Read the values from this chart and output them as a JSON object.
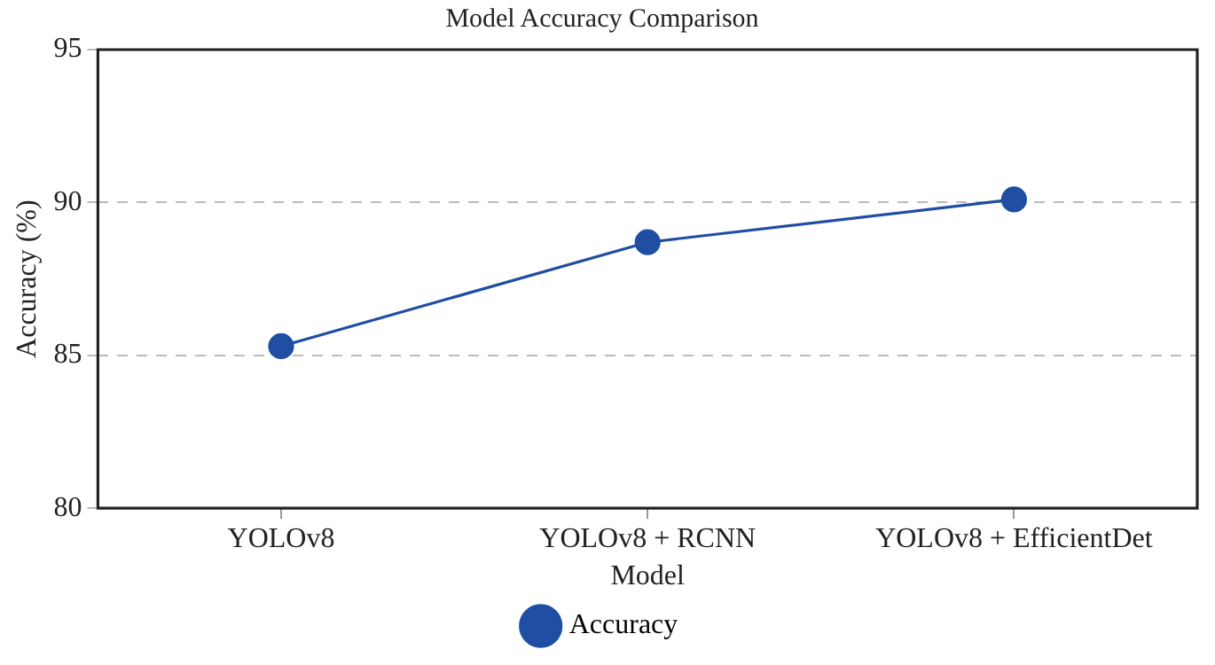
{
  "chart_data": {
    "type": "line",
    "title": "Model Accuracy Comparison",
    "xlabel": "Model",
    "ylabel": "Accuracy (%)",
    "categories": [
      "YOLOv8",
      "YOLOv8 + RCNN",
      "YOLOv8 + EfficientDet"
    ],
    "series": [
      {
        "name": "Accuracy",
        "color": "#1f4ea3",
        "values": [
          85.3,
          88.7,
          90.1
        ]
      }
    ],
    "ylim": [
      80,
      95
    ],
    "yticks": [
      80,
      85,
      90,
      95
    ],
    "grid": "y",
    "legend": "bottom",
    "marker": "circle",
    "line_style": "solid"
  }
}
